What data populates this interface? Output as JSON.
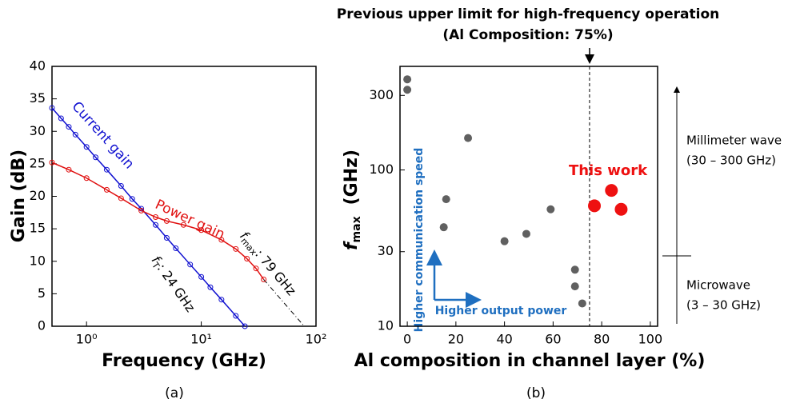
{
  "chart_data": [
    {
      "type": "line",
      "xlabel": "Frequency (GHz)",
      "ylabel": "Gain (dB)",
      "caption": "(a)",
      "xlog": true,
      "xlim": [
        0.5,
        100
      ],
      "xticks": [
        {
          "value": 1,
          "label": "10⁰"
        },
        {
          "value": 10,
          "label": "10¹"
        },
        {
          "value": 100,
          "label": "10²"
        }
      ],
      "ylim": [
        0,
        40
      ],
      "yticks": [
        0,
        5,
        10,
        15,
        20,
        25,
        30,
        35,
        40
      ],
      "series": [
        {
          "name": "Current gain",
          "color": "#1010d0",
          "x": [
            0.5,
            0.6,
            0.7,
            0.8,
            1,
            1.2,
            1.5,
            2,
            2.5,
            3,
            4,
            5,
            6,
            8,
            10,
            12,
            15,
            20,
            24
          ],
          "values": [
            33.6,
            32.0,
            30.7,
            29.5,
            27.6,
            26.0,
            24.1,
            21.6,
            19.6,
            18.1,
            15.6,
            13.6,
            12.0,
            9.5,
            7.6,
            6.0,
            4.1,
            1.6,
            0
          ]
        },
        {
          "name": "Power gain",
          "color": "#e01010",
          "x": [
            0.5,
            0.7,
            1,
            1.5,
            2,
            3,
            4,
            5,
            7,
            10,
            15,
            20,
            25,
            30,
            35
          ],
          "values": [
            25.2,
            24.1,
            22.8,
            21.0,
            19.7,
            17.8,
            16.8,
            16.2,
            15.6,
            14.8,
            13.3,
            11.9,
            10.4,
            8.9,
            7.2
          ]
        }
      ],
      "extrapolation": {
        "color": "#000000",
        "x": [
          35,
          79
        ],
        "values": [
          7.2,
          0
        ]
      },
      "ft_label": {
        "symbol": "f",
        "subscript": "T",
        "text": ": 24 GHz"
      },
      "fmax_label": {
        "symbol": "f",
        "subscript": "max",
        "text": ": 79 GHz"
      }
    },
    {
      "type": "scatter",
      "xlabel": "Al composition in channel layer (%)",
      "caption": "(b)",
      "ylabel": {
        "symbol": "f",
        "subscript": "max",
        "unit": "(GHz)"
      },
      "title": [
        "Previous upper limit for high-frequency operation",
        "(Al Composition: 75%)"
      ],
      "xlim": [
        -3,
        103
      ],
      "xticks": [
        0,
        20,
        40,
        60,
        80,
        100
      ],
      "ylog": true,
      "ylim": [
        10,
        460
      ],
      "yticks": [
        10,
        30,
        100,
        300
      ],
      "series": [
        {
          "color": "#606060",
          "size": 5,
          "x": [
            0,
            0,
            15,
            16,
            25,
            40,
            49,
            59,
            69,
            69,
            72
          ],
          "values": [
            380,
            326,
            43,
            65,
            160,
            35,
            39,
            56,
            23,
            18,
            14
          ]
        },
        {
          "name": "This work",
          "color": "#ee1111",
          "size": 8,
          "x": [
            77,
            84,
            88
          ],
          "values": [
            59,
            74,
            56
          ]
        }
      ],
      "reference_line": {
        "x": 75
      },
      "arrows": [
        "Higher communication speed",
        "Higher output power"
      ],
      "bands": [
        "Millimeter wave",
        "(30 – 300 GHz)",
        "Microwave",
        "(3 – 30 GHz)"
      ]
    }
  ]
}
